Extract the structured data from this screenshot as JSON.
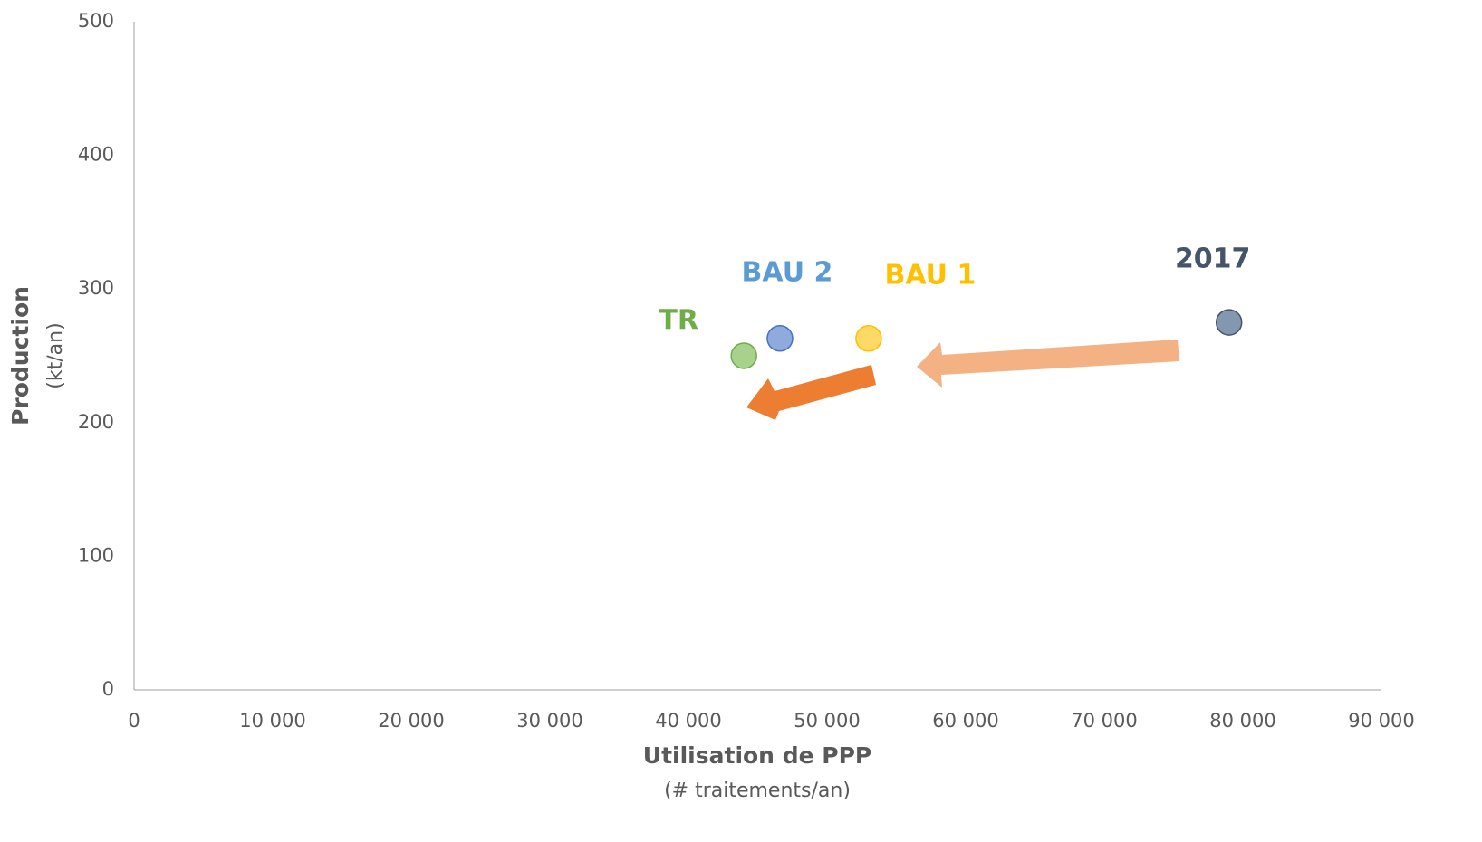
{
  "chart_data": {
    "type": "scatter",
    "x_label": "Utilisation de PPP",
    "x_sublabel": "(# traitements/an)",
    "y_label": "Production",
    "y_sublabel": "(kt/an)",
    "xlim": [
      0,
      90000
    ],
    "xticks": [
      0,
      {
        "value": 10000,
        "label": "10 000"
      },
      {
        "value": 20000,
        "label": "20 000"
      },
      {
        "value": 30000,
        "label": "30 000"
      },
      {
        "value": 40000,
        "label": "40 000"
      },
      {
        "value": 50000,
        "label": "50 000"
      },
      {
        "value": 60000,
        "label": "60 000"
      },
      {
        "value": 70000,
        "label": "70 000"
      },
      {
        "value": 80000,
        "label": "80 000"
      },
      {
        "value": 90000,
        "label": "90 000"
      }
    ],
    "ylim": [
      0,
      500
    ],
    "yticks": [
      0,
      100,
      200,
      300,
      400,
      500
    ],
    "grid": false,
    "series": [
      {
        "name": "TR",
        "color": "#a9d18e",
        "edge_color": "#70ad47",
        "label_color": "#70ad47",
        "x": [
          44000
        ],
        "values": [
          250
        ]
      },
      {
        "name": "BAU 2",
        "color": "#8faadc",
        "edge_color": "#4472c4",
        "label_color": "#5b9bd5",
        "x": [
          46600
        ],
        "values": [
          263
        ]
      },
      {
        "name": "BAU 1",
        "color": "#ffd966",
        "edge_color": "#ffc000",
        "label_color": "#ffc000",
        "x": [
          53000
        ],
        "values": [
          263
        ]
      },
      {
        "name": "2017",
        "color": "#8497b0",
        "edge_color": "#44546a",
        "label_color": "#44546a",
        "x": [
          79000
        ],
        "values": [
          275
        ]
      }
    ]
  }
}
